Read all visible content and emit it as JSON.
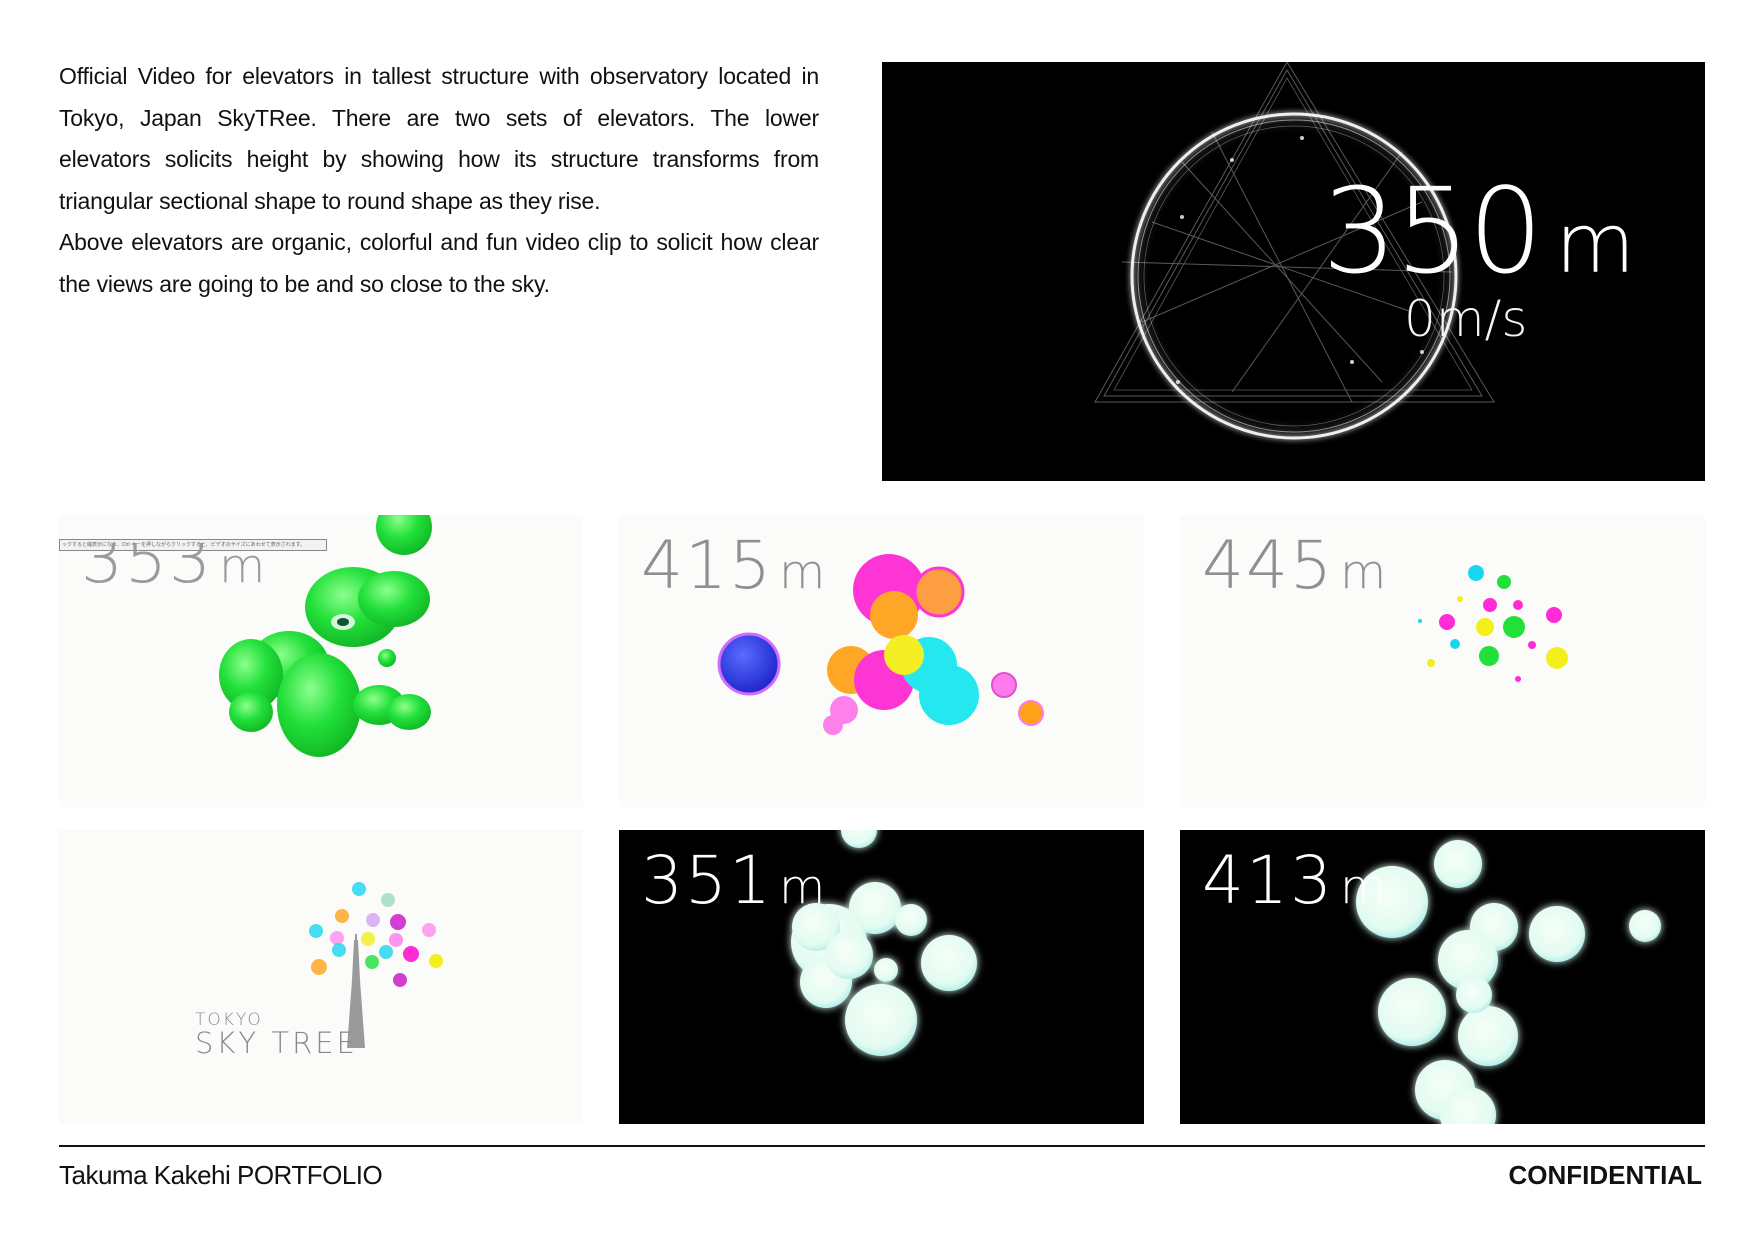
{
  "description": {
    "paragraph1": "Official Video for elevators in tallest structure with observatory located in Tokyo, Japan SkyTRee. There are two sets of elevators. The lower elevators solicits height by showing how its structure transforms from triangular sectional shape to round shape as they rise.",
    "paragraph2": "Above elevators are organic, colorful and fun video clip to solicit how clear the views are going to be and so close to the sky."
  },
  "hero": {
    "height_value": "350",
    "height_unit": "m",
    "speed_value": "0",
    "speed_unit": "m/s"
  },
  "stills": [
    {
      "value": "353",
      "unit": "m",
      "theme": "light",
      "tooltip": "ックすると縮表示になり、Ctrl キーを押しながらクリックすると、ビデオのサイズにあわせて表示されます。"
    },
    {
      "value": "415",
      "unit": "m",
      "theme": "light"
    },
    {
      "value": "445",
      "unit": "m",
      "theme": "light"
    },
    {
      "theme": "light",
      "logo_line1": "TOKYO",
      "logo_line2": "SKY TREE"
    },
    {
      "value": "351",
      "unit": "m",
      "theme": "dark"
    },
    {
      "value": "413",
      "unit": "m",
      "theme": "dark"
    }
  ],
  "colors": {
    "green": "#22e03a",
    "magenta": "#ff2bd4",
    "cyan": "#19e6f0",
    "orange": "#ffa21a",
    "blue": "#2233dd",
    "yellow": "#f4ee1a",
    "glow": "#eafff6"
  },
  "footer": {
    "left": "Takuma Kakehi PORTFOLIO",
    "right": "CONFIDENTIAL"
  }
}
